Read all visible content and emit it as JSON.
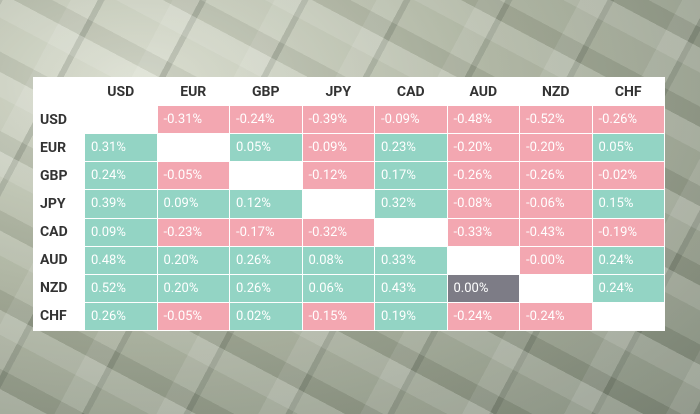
{
  "table": {
    "columns": [
      "USD",
      "EUR",
      "GBP",
      "JPY",
      "CAD",
      "AUD",
      "NZD",
      "CHF"
    ],
    "rows": [
      {
        "label": "USD",
        "cells": [
          null,
          "-0.31%",
          "-0.24%",
          "-0.39%",
          "-0.09%",
          "-0.48%",
          "-0.52%",
          "-0.26%"
        ]
      },
      {
        "label": "EUR",
        "cells": [
          "0.31%",
          null,
          "0.05%",
          "-0.09%",
          "0.23%",
          "-0.20%",
          "-0.20%",
          "0.05%"
        ]
      },
      {
        "label": "GBP",
        "cells": [
          "0.24%",
          "-0.05%",
          null,
          "-0.12%",
          "0.17%",
          "-0.26%",
          "-0.26%",
          "-0.02%"
        ]
      },
      {
        "label": "JPY",
        "cells": [
          "0.39%",
          "0.09%",
          "0.12%",
          null,
          "0.32%",
          "-0.08%",
          "-0.06%",
          "0.15%"
        ]
      },
      {
        "label": "CAD",
        "cells": [
          "0.09%",
          "-0.23%",
          "-0.17%",
          "-0.32%",
          null,
          "-0.33%",
          "-0.43%",
          "-0.19%"
        ]
      },
      {
        "label": "AUD",
        "cells": [
          "0.48%",
          "0.20%",
          "0.26%",
          "0.08%",
          "0.33%",
          null,
          "-0.00%",
          "0.24%"
        ]
      },
      {
        "label": "NZD",
        "cells": [
          "0.52%",
          "0.20%",
          "0.26%",
          "0.06%",
          "0.43%",
          "0.00%",
          null,
          "0.24%"
        ]
      },
      {
        "label": "CHF",
        "cells": [
          "0.26%",
          "-0.05%",
          "0.02%",
          "-0.15%",
          "0.19%",
          "-0.24%",
          "-0.24%",
          null
        ]
      }
    ]
  }
}
